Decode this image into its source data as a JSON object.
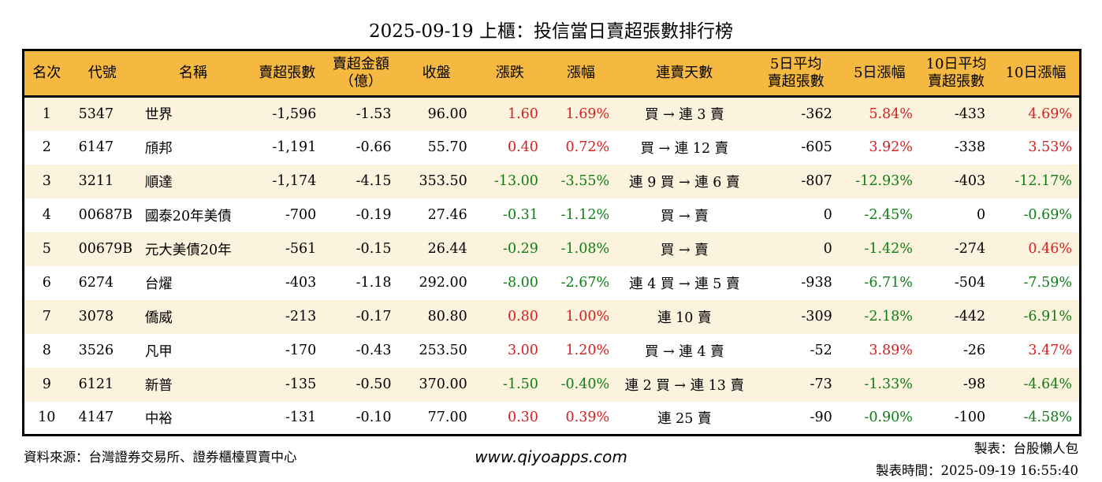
{
  "title": "2025-09-19 上櫃：投信當日賣超張數排行榜",
  "colors": {
    "up": "#d42020",
    "down": "#0e7d12",
    "header_bg": "#f5b942",
    "row_alt_bg": "#fcf3de",
    "border": "#000000"
  },
  "chart_data": {
    "type": "table",
    "columns": [
      {
        "id": "rank",
        "label": "名次",
        "align": "center"
      },
      {
        "id": "code",
        "label": "代號",
        "align": "left"
      },
      {
        "id": "name",
        "label": "名稱",
        "align": "left"
      },
      {
        "id": "sell-volume",
        "label": "賣超張數",
        "align": "right"
      },
      {
        "id": "sell-amount",
        "label": "賣超金額",
        "label2": "（億）",
        "align": "right"
      },
      {
        "id": "close",
        "label": "收盤",
        "align": "right"
      },
      {
        "id": "change",
        "label": "漲跌",
        "align": "right"
      },
      {
        "id": "change-pct",
        "label": "漲幅",
        "align": "right"
      },
      {
        "id": "streak",
        "label": "連賣天數",
        "align": "center"
      },
      {
        "id": "avg5-volume",
        "label": "5日平均",
        "label2": "賣超張數",
        "align": "right"
      },
      {
        "id": "pct5",
        "label": "5日漲幅",
        "align": "right"
      },
      {
        "id": "avg10-volume",
        "label": "10日平均",
        "label2": "賣超張數",
        "align": "right"
      },
      {
        "id": "pct10",
        "label": "10日漲幅",
        "align": "right"
      }
    ],
    "rows": [
      [
        "1",
        "5347",
        "世界",
        "-1,596",
        "-1.53",
        "96.00",
        {
          "v": "1.60",
          "c": "up"
        },
        {
          "v": "1.69%",
          "c": "up"
        },
        "買 → 連 3 賣",
        "-362",
        {
          "v": "5.84%",
          "c": "up"
        },
        "-433",
        {
          "v": "4.69%",
          "c": "up"
        }
      ],
      [
        "2",
        "6147",
        "頎邦",
        "-1,191",
        "-0.66",
        "55.70",
        {
          "v": "0.40",
          "c": "up"
        },
        {
          "v": "0.72%",
          "c": "up"
        },
        "買 → 連 12 賣",
        "-605",
        {
          "v": "3.92%",
          "c": "up"
        },
        "-338",
        {
          "v": "3.53%",
          "c": "up"
        }
      ],
      [
        "3",
        "3211",
        "順達",
        "-1,174",
        "-4.15",
        "353.50",
        {
          "v": "-13.00",
          "c": "down"
        },
        {
          "v": "-3.55%",
          "c": "down"
        },
        "連 9 買 → 連 6 賣",
        "-807",
        {
          "v": "-12.93%",
          "c": "down"
        },
        "-403",
        {
          "v": "-12.17%",
          "c": "down"
        }
      ],
      [
        "4",
        "00687B",
        "國泰20年美債",
        "-700",
        "-0.19",
        "27.46",
        {
          "v": "-0.31",
          "c": "down"
        },
        {
          "v": "-1.12%",
          "c": "down"
        },
        "買 → 賣",
        "0",
        {
          "v": "-2.45%",
          "c": "down"
        },
        "0",
        {
          "v": "-0.69%",
          "c": "down"
        }
      ],
      [
        "5",
        "00679B",
        "元大美債20年",
        "-561",
        "-0.15",
        "26.44",
        {
          "v": "-0.29",
          "c": "down"
        },
        {
          "v": "-1.08%",
          "c": "down"
        },
        "買 → 賣",
        "0",
        {
          "v": "-1.42%",
          "c": "down"
        },
        "-274",
        {
          "v": "0.46%",
          "c": "up"
        }
      ],
      [
        "6",
        "6274",
        "台燿",
        "-403",
        "-1.18",
        "292.00",
        {
          "v": "-8.00",
          "c": "down"
        },
        {
          "v": "-2.67%",
          "c": "down"
        },
        "連 4 買 → 連 5 賣",
        "-938",
        {
          "v": "-6.71%",
          "c": "down"
        },
        "-504",
        {
          "v": "-7.59%",
          "c": "down"
        }
      ],
      [
        "7",
        "3078",
        "僑威",
        "-213",
        "-0.17",
        "80.80",
        {
          "v": "0.80",
          "c": "up"
        },
        {
          "v": "1.00%",
          "c": "up"
        },
        "連 10 賣",
        "-309",
        {
          "v": "-2.18%",
          "c": "down"
        },
        "-442",
        {
          "v": "-6.91%",
          "c": "down"
        }
      ],
      [
        "8",
        "3526",
        "凡甲",
        "-170",
        "-0.43",
        "253.50",
        {
          "v": "3.00",
          "c": "up"
        },
        {
          "v": "1.20%",
          "c": "up"
        },
        "買 → 連 4 賣",
        "-52",
        {
          "v": "3.89%",
          "c": "up"
        },
        "-26",
        {
          "v": "3.47%",
          "c": "up"
        }
      ],
      [
        "9",
        "6121",
        "新普",
        "-135",
        "-0.50",
        "370.00",
        {
          "v": "-1.50",
          "c": "down"
        },
        {
          "v": "-0.40%",
          "c": "down"
        },
        "連 2 買 → 連 13 賣",
        "-73",
        {
          "v": "-1.33%",
          "c": "down"
        },
        "-98",
        {
          "v": "-4.64%",
          "c": "down"
        }
      ],
      [
        "10",
        "4147",
        "中裕",
        "-131",
        "-0.10",
        "77.00",
        {
          "v": "0.30",
          "c": "up"
        },
        {
          "v": "0.39%",
          "c": "up"
        },
        "連 25 賣",
        "-90",
        {
          "v": "-0.90%",
          "c": "down"
        },
        "-100",
        {
          "v": "-4.58%",
          "c": "down"
        }
      ]
    ]
  },
  "footer": {
    "source": "資料來源：台灣證券交易所、證券櫃檯買賣中心",
    "website": "www.qiyoapps.com",
    "maker": "製表：台股懶人包",
    "made_time": "製表時間：2025-09-19 16:55:40"
  }
}
